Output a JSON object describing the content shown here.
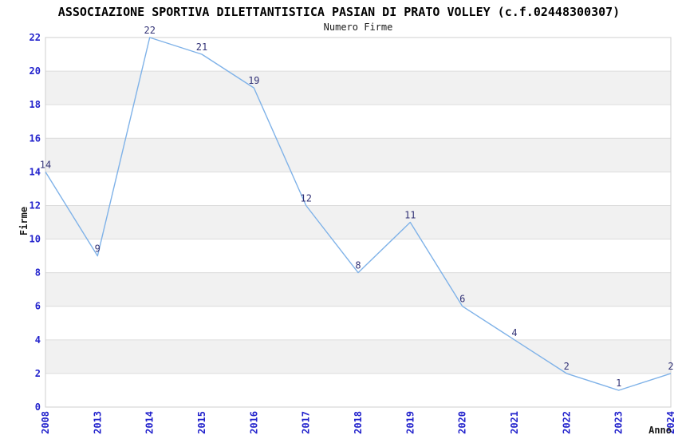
{
  "chart_data": {
    "type": "line",
    "title": "ASSOCIAZIONE SPORTIVA DILETTANTISTICA PASIAN DI PRATO VOLLEY (c.f.02448300307)",
    "subtitle": "Numero Firme",
    "xlabel": "Anno",
    "ylabel": "Firme",
    "categories": [
      "2008",
      "2013",
      "2014",
      "2015",
      "2016",
      "2017",
      "2018",
      "2019",
      "2020",
      "2021",
      "2022",
      "2023",
      "2024"
    ],
    "values": [
      14,
      9,
      22,
      21,
      19,
      12,
      8,
      11,
      6,
      4,
      2,
      1,
      2
    ],
    "yticks": [
      0,
      2,
      4,
      6,
      8,
      10,
      12,
      14,
      16,
      18,
      20,
      22
    ],
    "ylim": [
      0,
      22
    ],
    "grid": "alternating-horizontal-bands",
    "legend_position": "none",
    "point_labels_visible": true,
    "colors": {
      "line": "#7fb2e8",
      "tick_labels": "#2222cc",
      "point_labels": "#333377",
      "band_fill": "#f1f1f1",
      "gridline": "#dcdcdc",
      "plot_border": "#cfcfcf",
      "title": "#000000",
      "axis_titles": "#1a1a1a",
      "background": "#ffffff"
    }
  }
}
